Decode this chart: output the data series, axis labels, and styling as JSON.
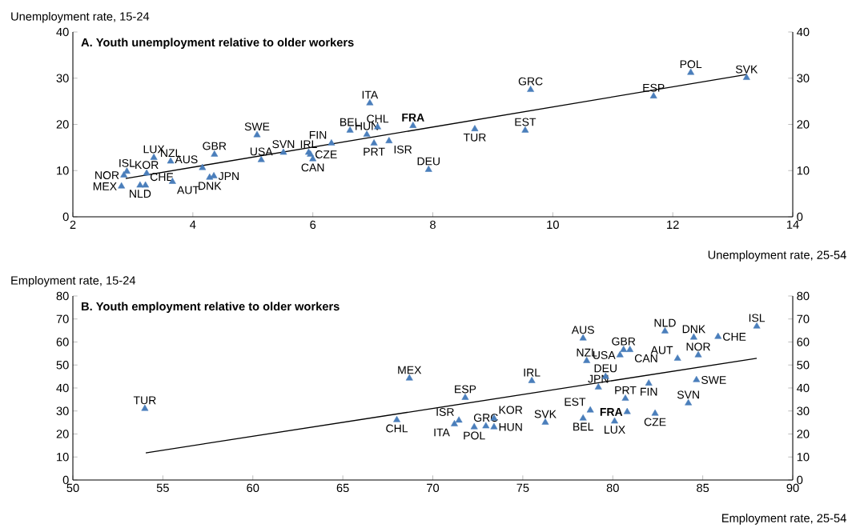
{
  "chart_data": [
    {
      "type": "scatter",
      "title": "A. Youth unemployment relative to older workers",
      "ylabel": "Unemployment rate, 15-24",
      "xlabel": "Unemployment rate, 25-54",
      "xlim": [
        2,
        14
      ],
      "xticks": [
        2,
        4,
        6,
        8,
        10,
        12,
        14
      ],
      "ylim": [
        0,
        40
      ],
      "yticks": [
        0,
        10,
        20,
        30,
        40
      ],
      "y2lim": [
        0,
        40
      ],
      "y2ticks": [
        0,
        10,
        20,
        30,
        40
      ],
      "marker": "triangle",
      "series": [
        {
          "color": "#4a7ebb",
          "x": [
            2.85,
            2.9,
            2.81,
            3.23,
            3.35,
            3.63,
            3.21,
            3.66,
            3.12,
            4.16,
            4.36,
            4.28,
            4.35,
            5.07,
            5.14,
            5.51,
            5.93,
            5.96,
            6.0,
            6.31,
            6.62,
            6.9,
            7.08,
            6.95,
            7.02,
            7.27,
            7.67,
            7.93,
            8.7,
            9.54,
            9.63,
            11.68,
            12.3,
            13.23
          ],
          "values": [
            9.0,
            9.8,
            6.6,
            9.4,
            12.8,
            12.0,
            6.8,
            7.6,
            6.8,
            10.6,
            13.5,
            8.5,
            8.8,
            17.7,
            12.3,
            13.9,
            13.9,
            13.5,
            12.5,
            15.9,
            18.7,
            17.8,
            19.4,
            24.6,
            15.9,
            16.4,
            19.7,
            10.2,
            19.0,
            18.7,
            27.5,
            26.1,
            31.2,
            30.1
          ]
        },
        {
          "type": "line",
          "color": "#000000",
          "marker": "none",
          "x": [
            2.88,
            13.23
          ],
          "values": [
            8.3,
            30.8
          ]
        }
      ],
      "annotations": [
        {
          "text": "NOR",
          "x": 2.85,
          "y": 9.0
        },
        {
          "text": "ISL",
          "x": 2.9,
          "y": 9.8
        },
        {
          "text": "MEX",
          "x": 2.81,
          "y": 6.6
        },
        {
          "text": "KOR",
          "x": 3.23,
          "y": 9.4
        },
        {
          "text": "LUX",
          "x": 3.35,
          "y": 12.8
        },
        {
          "text": "NZL",
          "x": 3.63,
          "y": 12.0
        },
        {
          "text": "CHE",
          "x": 3.21,
          "y": 6.8
        },
        {
          "text": "AUT",
          "x": 3.66,
          "y": 7.6
        },
        {
          "text": "NLD",
          "x": 3.12,
          "y": 6.8
        },
        {
          "text": "AUS",
          "x": 4.16,
          "y": 10.6
        },
        {
          "text": "GBR",
          "x": 4.36,
          "y": 13.5
        },
        {
          "text": "DNK",
          "x": 4.28,
          "y": 8.5
        },
        {
          "text": "JPN",
          "x": 4.35,
          "y": 8.8
        },
        {
          "text": "SWE",
          "x": 5.07,
          "y": 17.7
        },
        {
          "text": "USA",
          "x": 5.14,
          "y": 12.3
        },
        {
          "text": "SVN",
          "x": 5.51,
          "y": 13.9
        },
        {
          "text": "IRL",
          "x": 5.93,
          "y": 13.9
        },
        {
          "text": "CZE",
          "x": 5.96,
          "y": 13.5
        },
        {
          "text": "CAN",
          "x": 6.0,
          "y": 12.5
        },
        {
          "text": "FIN",
          "x": 6.31,
          "y": 15.9
        },
        {
          "text": "BEL",
          "x": 6.62,
          "y": 18.7
        },
        {
          "text": "HUN",
          "x": 6.9,
          "y": 17.8
        },
        {
          "text": "CHL",
          "x": 7.08,
          "y": 19.4
        },
        {
          "text": "ITA",
          "x": 6.95,
          "y": 24.6
        },
        {
          "text": "PRT",
          "x": 7.02,
          "y": 15.9
        },
        {
          "text": "ISR",
          "x": 7.27,
          "y": 16.4
        },
        {
          "text": "**FRA**",
          "x": 7.67,
          "y": 19.7
        },
        {
          "text": "DEU",
          "x": 7.93,
          "y": 10.2
        },
        {
          "text": "TUR",
          "x": 8.7,
          "y": 19.0
        },
        {
          "text": "EST",
          "x": 9.54,
          "y": 18.7
        },
        {
          "text": "GRC",
          "x": 9.63,
          "y": 27.5
        },
        {
          "text": "ESP",
          "x": 11.68,
          "y": 26.1
        },
        {
          "text": "POL",
          "x": 12.3,
          "y": 31.2
        },
        {
          "text": "SVK",
          "x": 13.23,
          "y": 30.1
        }
      ]
    },
    {
      "type": "scatter",
      "title": "B. Youth employment relative to older workers",
      "ylabel": "Employment rate, 15-24",
      "xlabel": "Employment rate, 25-54",
      "xlim": [
        50,
        90
      ],
      "xticks": [
        50,
        55,
        60,
        65,
        70,
        75,
        80,
        85,
        90
      ],
      "ylim": [
        0,
        80
      ],
      "yticks": [
        0,
        10,
        20,
        30,
        40,
        50,
        60,
        70,
        80
      ],
      "y2lim": [
        0,
        80
      ],
      "y2ticks": [
        0,
        10,
        20,
        30,
        40,
        50,
        60,
        70,
        80
      ],
      "marker": "triangle",
      "series": [
        {
          "color": "#4a7ebb",
          "x": [
            54.0,
            68.7,
            68.0,
            71.2,
            71.45,
            71.8,
            72.3,
            72.95,
            73.4,
            73.4,
            76.25,
            75.5,
            78.35,
            78.55,
            80.4,
            79.6,
            79.2,
            78.75,
            78.35,
            80.1,
            80.7,
            80.8,
            82.35,
            82.0,
            80.6,
            80.95,
            83.6,
            82.9,
            84.5,
            84.75,
            85.85,
            88.0,
            84.65,
            84.2
          ],
          "values": [
            31.0,
            44.2,
            26.1,
            24.3,
            25.9,
            35.8,
            23.0,
            23.4,
            26.8,
            23.0,
            25.0,
            43.1,
            61.6,
            51.8,
            54.3,
            44.9,
            40.3,
            30.3,
            26.8,
            25.5,
            35.4,
            29.6,
            28.9,
            42.0,
            56.6,
            56.6,
            52.8,
            64.7,
            62.0,
            54.3,
            62.3,
            66.8,
            43.5,
            33.4
          ]
        },
        {
          "type": "line",
          "color": "#000000",
          "marker": "none",
          "x": [
            54.05,
            88.0
          ],
          "values": [
            11.8,
            52.9
          ]
        }
      ],
      "annotations": [
        {
          "text": "TUR",
          "x": 54.0,
          "y": 31.0
        },
        {
          "text": "MEX",
          "x": 68.7,
          "y": 44.2
        },
        {
          "text": "CHL",
          "x": 68.0,
          "y": 26.1
        },
        {
          "text": "ITA",
          "x": 71.2,
          "y": 24.3
        },
        {
          "text": "ISR",
          "x": 71.45,
          "y": 25.9
        },
        {
          "text": "ESP",
          "x": 71.8,
          "y": 35.8
        },
        {
          "text": "POL",
          "x": 72.3,
          "y": 23.0
        },
        {
          "text": "GRC",
          "x": 72.95,
          "y": 23.4
        },
        {
          "text": "KOR",
          "x": 73.4,
          "y": 26.8
        },
        {
          "text": "HUN",
          "x": 73.4,
          "y": 23.0
        },
        {
          "text": "SVK",
          "x": 76.25,
          "y": 25.0
        },
        {
          "text": "IRL",
          "x": 75.5,
          "y": 43.1
        },
        {
          "text": "AUS",
          "x": 78.35,
          "y": 61.6
        },
        {
          "text": "NZL",
          "x": 78.55,
          "y": 51.8
        },
        {
          "text": "USA",
          "x": 80.4,
          "y": 54.3
        },
        {
          "text": "DEU",
          "x": 79.6,
          "y": 44.9
        },
        {
          "text": "JPN",
          "x": 79.2,
          "y": 40.3
        },
        {
          "text": "EST",
          "x": 78.75,
          "y": 30.3
        },
        {
          "text": "BEL",
          "x": 78.35,
          "y": 26.8
        },
        {
          "text": "LUX",
          "x": 80.1,
          "y": 25.5
        },
        {
          "text": "PRT",
          "x": 80.7,
          "y": 35.4
        },
        {
          "text": "**FRA**",
          "x": 80.8,
          "y": 29.6
        },
        {
          "text": "CZE",
          "x": 82.35,
          "y": 28.9
        },
        {
          "text": "FIN",
          "x": 82.0,
          "y": 42.0
        },
        {
          "text": "GBR",
          "x": 80.6,
          "y": 56.6
        },
        {
          "text": "CAN",
          "x": 80.95,
          "y": 56.6
        },
        {
          "text": "AUT",
          "x": 83.6,
          "y": 52.8
        },
        {
          "text": "NLD",
          "x": 82.9,
          "y": 64.7
        },
        {
          "text": "DNK",
          "x": 84.5,
          "y": 62.0
        },
        {
          "text": "NOR",
          "x": 84.75,
          "y": 54.3
        },
        {
          "text": "CHE",
          "x": 85.85,
          "y": 62.3
        },
        {
          "text": "ISL",
          "x": 88.0,
          "y": 66.8
        },
        {
          "text": "SWE",
          "x": 84.65,
          "y": 43.5
        },
        {
          "text": "SVN",
          "x": 84.2,
          "y": 33.4
        }
      ]
    }
  ]
}
